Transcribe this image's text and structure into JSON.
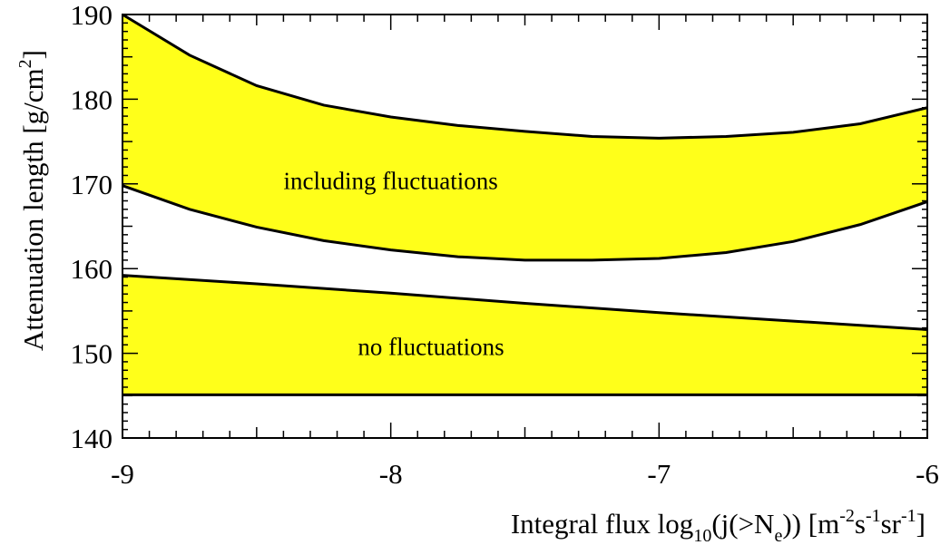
{
  "chart_data": {
    "type": "area",
    "title": "",
    "xlabel": {
      "main": "Integral flux log",
      "sub": "10",
      "arg_open": "(j(>N",
      "arg_sub": "e",
      "arg_close": ")) [m",
      "u1": "-2",
      "u1_base": "s",
      "u2": "-1",
      "u2_base": "sr",
      "u3": "-1",
      "end": "]"
    },
    "ylabel": {
      "main": "Attenuation length [g/cm",
      "sup": "2",
      "end": "]"
    },
    "xlim": [
      -9,
      -6
    ],
    "ylim": [
      140,
      190
    ],
    "xticks": [
      -9,
      -8,
      -7,
      -6
    ],
    "xtick_labels": [
      "-9",
      "-8",
      "-7",
      "-6"
    ],
    "yticks": [
      140,
      150,
      160,
      170,
      180,
      190
    ],
    "ytick_labels": [
      "140",
      "150",
      "160",
      "170",
      "180",
      "190"
    ],
    "grid": false,
    "bands": [
      {
        "label": "including fluctuations",
        "label_pos": [
          -8.0,
          169.4
        ],
        "fill": "#ffff1a",
        "upper": {
          "x": [
            -9.0,
            -8.75,
            -8.5,
            -8.25,
            -8.0,
            -7.75,
            -7.5,
            -7.25,
            -7.0,
            -6.75,
            -6.5,
            -6.25,
            -6.0
          ],
          "y": [
            190.0,
            185.2,
            181.6,
            179.3,
            177.9,
            176.9,
            176.2,
            175.6,
            175.4,
            175.6,
            176.1,
            177.1,
            179.0
          ]
        },
        "lower": {
          "x": [
            -9.0,
            -8.75,
            -8.5,
            -8.25,
            -8.0,
            -7.75,
            -7.5,
            -7.25,
            -7.0,
            -6.75,
            -6.5,
            -6.25,
            -6.0
          ],
          "y": [
            169.8,
            167.0,
            164.9,
            163.3,
            162.2,
            161.4,
            161.0,
            161.0,
            161.2,
            161.9,
            163.2,
            165.2,
            167.9
          ]
        }
      },
      {
        "label": "no fluctuations",
        "label_pos": [
          -7.85,
          149.8
        ],
        "fill": "#ffff1a",
        "upper": {
          "x": [
            -9.0,
            -8.5,
            -8.0,
            -7.5,
            -7.0,
            -6.5,
            -6.0
          ],
          "y": [
            159.2,
            158.2,
            157.1,
            155.9,
            154.8,
            153.8,
            152.8
          ]
        },
        "lower": {
          "x": [
            -9.0,
            -6.0
          ],
          "y": [
            145.1,
            145.1
          ]
        }
      }
    ]
  }
}
